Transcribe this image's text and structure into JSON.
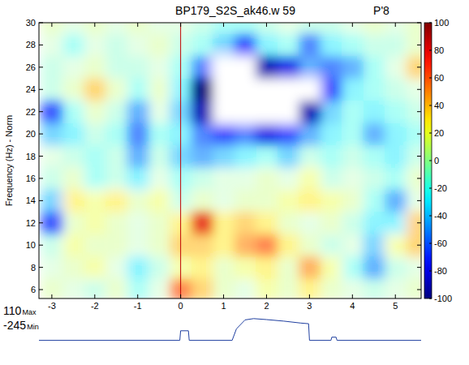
{
  "chart_data": {
    "type": "heatmap",
    "title": "BP179_S2S_ak46.w   59",
    "subtitle": "P'8",
    "y_label": "Frequency (Hz) - Norm",
    "xlim": [
      -3.3,
      5.6
    ],
    "ylim": [
      5.2,
      30
    ],
    "xticks": [
      -3,
      -2,
      -1,
      0,
      1,
      2,
      3,
      4,
      5
    ],
    "yticks": [
      6,
      8,
      10,
      12,
      14,
      16,
      18,
      20,
      22,
      24,
      26,
      28,
      30
    ],
    "grid": false,
    "event_x": 0,
    "x": [
      -3,
      -2.5,
      -2,
      -1.5,
      -1,
      -0.5,
      0,
      0.5,
      1,
      1.5,
      2,
      2.5,
      3,
      3.5,
      4,
      4.5,
      5,
      5.5
    ],
    "y": [
      6,
      8,
      10,
      12,
      14,
      16,
      18,
      20,
      22,
      24,
      26,
      28,
      30
    ],
    "cells": [
      [
        10,
        0,
        -10,
        10,
        -20,
        0,
        60,
        40,
        10,
        0,
        20,
        10,
        30,
        10,
        0,
        -10,
        0,
        10
      ],
      [
        0,
        10,
        20,
        0,
        -30,
        -10,
        20,
        30,
        10,
        20,
        30,
        10,
        50,
        20,
        -20,
        -50,
        -10,
        0
      ],
      [
        -10,
        20,
        10,
        10,
        0,
        10,
        40,
        40,
        30,
        50,
        60,
        30,
        10,
        -10,
        0,
        -40,
        20,
        40
      ],
      [
        -70,
        10,
        20,
        10,
        0,
        10,
        30,
        80,
        30,
        40,
        30,
        10,
        0,
        10,
        -10,
        -30,
        -30,
        40
      ],
      [
        -40,
        30,
        20,
        30,
        10,
        20,
        -10,
        10,
        0,
        10,
        10,
        20,
        30,
        20,
        10,
        -20,
        -50,
        0
      ],
      [
        -10,
        10,
        -20,
        -10,
        -30,
        0,
        -20,
        -10,
        0,
        0,
        10,
        0,
        20,
        -10,
        0,
        -10,
        -20,
        10
      ],
      [
        0,
        -10,
        -20,
        -10,
        -50,
        -10,
        -40,
        -50,
        -40,
        -30,
        -20,
        -40,
        -10,
        -20,
        -10,
        -20,
        -30,
        -10
      ],
      [
        -40,
        -30,
        -10,
        -20,
        -60,
        -20,
        -30,
        -60,
        -70,
        -60,
        -80,
        -70,
        -50,
        -30,
        -20,
        -50,
        -30,
        -20
      ],
      [
        -70,
        -20,
        10,
        -10,
        -50,
        0,
        -40,
        -90,
        -130,
        -130,
        -110,
        -120,
        -90,
        -40,
        -20,
        -30,
        -20,
        -10
      ],
      [
        -10,
        10,
        40,
        10,
        -20,
        10,
        -30,
        -100,
        -130,
        -130,
        -120,
        -130,
        -110,
        -70,
        -30,
        -20,
        -10,
        0
      ],
      [
        -10,
        0,
        10,
        -10,
        -10,
        0,
        -20,
        -60,
        -110,
        -120,
        -90,
        -80,
        -50,
        -60,
        -50,
        -20,
        0,
        40
      ],
      [
        0,
        -20,
        0,
        -10,
        0,
        10,
        -10,
        -20,
        -40,
        -70,
        -30,
        -20,
        -60,
        -30,
        -20,
        -10,
        -10,
        10
      ],
      [
        10,
        0,
        10,
        0,
        10,
        0,
        0,
        -10,
        -20,
        -20,
        -10,
        0,
        -10,
        -10,
        0,
        10,
        0,
        10
      ]
    ],
    "color_range": [
      -100,
      100
    ],
    "color_ticks": [
      -100,
      -80,
      -60,
      -40,
      -20,
      0,
      20,
      40,
      60,
      80,
      100
    ],
    "trace": {
      "x": [
        -3.3,
        -0.02,
        0,
        0.18,
        0.2,
        1.2,
        1.3,
        1.5,
        1.7,
        2.0,
        2.4,
        2.8,
        2.98,
        3.0,
        3.5,
        3.52,
        3.62,
        3.64,
        5.6
      ],
      "values": [
        -240,
        -240,
        -90,
        -90,
        -240,
        -240,
        -60,
        80,
        100,
        85,
        60,
        30,
        20,
        -240,
        -240,
        -190,
        -190,
        -240,
        -240
      ],
      "max": 110,
      "min": -245,
      "max_label": "Max",
      "min_label": "Min"
    }
  }
}
